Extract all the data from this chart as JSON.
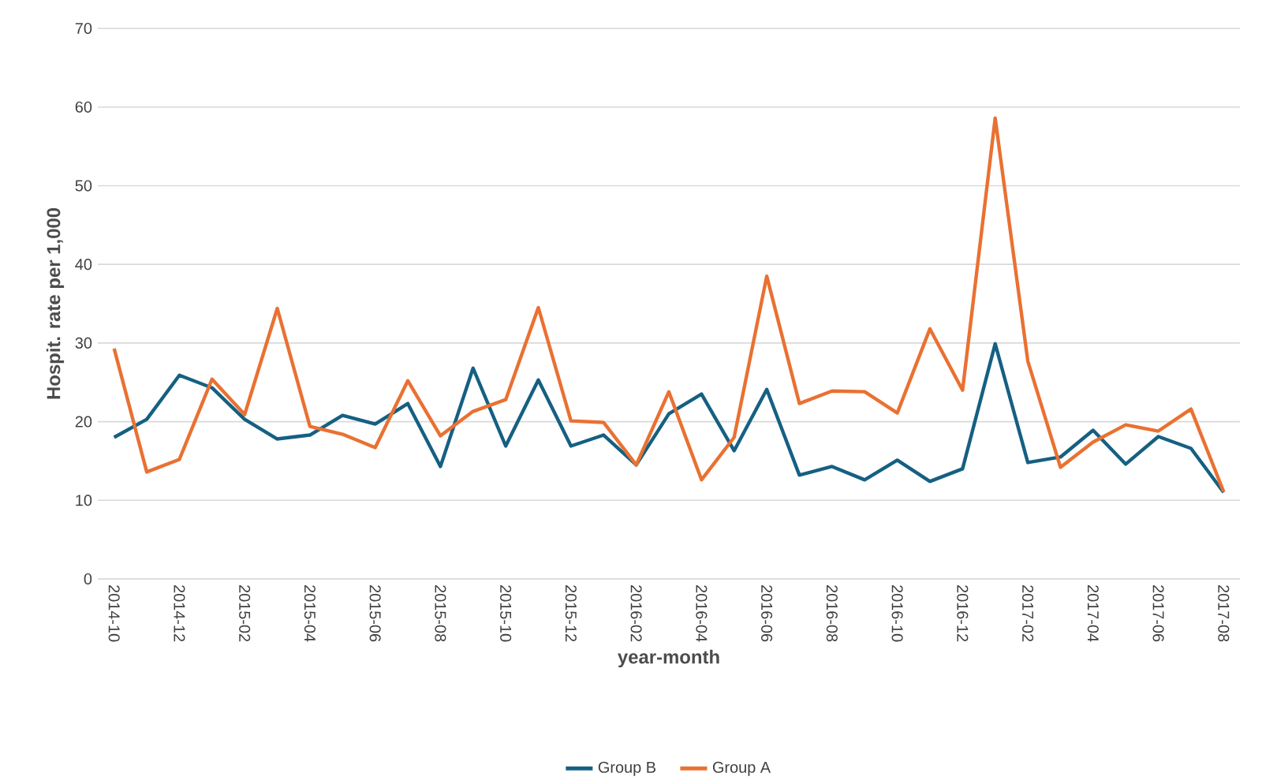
{
  "chart_data": {
    "type": "line",
    "xlabel": "year-month",
    "ylabel": "Hospit. rate per 1,000",
    "categories": [
      "2014-10",
      null,
      "2014-12",
      null,
      "2015-02",
      null,
      "2015-04",
      null,
      "2015-06",
      null,
      "2015-08",
      null,
      "2015-10",
      null,
      "2015-12",
      null,
      "2016-02",
      null,
      "2016-04",
      null,
      "2016-06",
      null,
      "2016-08",
      null,
      "2016-10",
      null,
      "2016-12",
      null,
      "2017-02",
      null,
      "2017-04",
      null,
      "2017-06",
      null,
      "2017-08"
    ],
    "series": [
      {
        "name": "Group B",
        "color": "#156082",
        "values": [
          18,
          20.3,
          25.9,
          24.3,
          20.3,
          17.8,
          18.3,
          20.8,
          19.7,
          22.3,
          14.3,
          26.8,
          16.9,
          25.3,
          16.9,
          18.3,
          14.5,
          21.0,
          23.5,
          16.3,
          24.1,
          13.2,
          14.3,
          12.6,
          15.1,
          12.4,
          14.0,
          29.9,
          14.8,
          15.5,
          18.9,
          14.6,
          18.1,
          16.6,
          11.0
        ]
      },
      {
        "name": "Group A",
        "color": "#e97132",
        "values": [
          29.3,
          13.6,
          15.2,
          25.4,
          20.9,
          34.4,
          19.4,
          18.4,
          16.7,
          25.2,
          18.2,
          21.3,
          22.8,
          34.5,
          20.1,
          19.9,
          14.5,
          23.8,
          12.6,
          18.0,
          38.5,
          22.3,
          23.9,
          23.8,
          21.1,
          31.8,
          24.0,
          58.6,
          27.7,
          14.2,
          17.4,
          19.6,
          18.8,
          21.6,
          11.1
        ]
      }
    ],
    "ylim": [
      0,
      70
    ],
    "yticks": [
      0,
      10,
      20,
      30,
      40,
      50,
      60,
      70
    ],
    "grid": "y",
    "legend": "bottom",
    "marker": "none",
    "line_style": "solid"
  }
}
